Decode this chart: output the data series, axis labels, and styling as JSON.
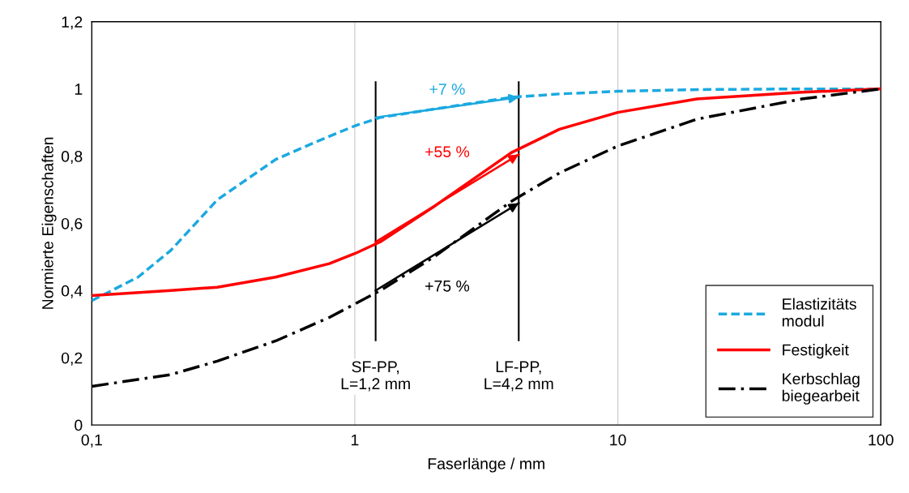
{
  "chart_data": {
    "type": "line",
    "xlabel": "Faserlänge / mm",
    "ylabel": "Normierte Eigenschaften",
    "log": "x",
    "grid": "x",
    "legend": "bottom right",
    "xlim": [
      0.1,
      100
    ],
    "xticks": [
      {
        "value": 0.1,
        "label": "0,1"
      },
      1,
      10,
      100
    ],
    "ylim": [
      0,
      1.2
    ],
    "yticks": [
      0,
      {
        "value": 0.2,
        "label": "0,2"
      },
      {
        "value": 0.4,
        "label": "0,4"
      },
      {
        "value": 0.6,
        "label": "0,6"
      },
      {
        "value": 0.8,
        "label": "0,8"
      },
      1,
      {
        "value": 1.2,
        "label": "1,2"
      }
    ],
    "series": [
      {
        "name": "Elastizitäts\nmodul",
        "color": "#1ba9e0",
        "line_style": "dashed",
        "x": [
          0.1,
          0.15,
          0.2,
          0.3,
          0.5,
          0.7,
          1,
          1.25,
          2,
          3.93,
          6,
          10,
          20,
          50,
          100
        ],
        "values": [
          0.37,
          0.44,
          0.52,
          0.67,
          0.79,
          0.84,
          0.89,
          0.915,
          0.94,
          0.975,
          0.985,
          0.993,
          0.998,
          1.0,
          1.0
        ]
      },
      {
        "name": "Festigkeit",
        "color": "#ff0000",
        "line_style": "solid",
        "x": [
          0.1,
          0.2,
          0.3,
          0.5,
          0.8,
          1,
          1.25,
          2,
          3.93,
          6,
          10,
          20,
          50,
          100
        ],
        "values": [
          0.385,
          0.4,
          0.41,
          0.44,
          0.48,
          0.51,
          0.545,
          0.65,
          0.81,
          0.88,
          0.93,
          0.97,
          0.99,
          1.0
        ]
      },
      {
        "name": "Kerbschlag\nbiegearbeit",
        "color": "#000000",
        "line_style": "dashdot",
        "x": [
          0.1,
          0.2,
          0.3,
          0.5,
          0.8,
          1,
          1.25,
          2,
          3.93,
          6,
          10,
          20,
          50,
          100
        ],
        "values": [
          0.115,
          0.15,
          0.19,
          0.25,
          0.32,
          0.36,
          0.4,
          0.5,
          0.665,
          0.75,
          0.83,
          0.91,
          0.97,
          1.0
        ]
      },
      {
        "color": "#1ba9e0",
        "line_style": "solid",
        "x": [
          1.2,
          4.2
        ],
        "values": [
          0.915,
          0.975
        ]
      },
      {
        "color": "#ff0000",
        "line_style": "solid",
        "x": [
          1.2,
          4.2
        ],
        "values": [
          0.545,
          0.805
        ]
      },
      {
        "color": "#000000",
        "line_style": "solid",
        "x": [
          1.2,
          4.2
        ],
        "values": [
          0.4,
          0.66
        ]
      }
    ],
    "ref_lines": [
      {
        "axis": "x",
        "value": 1.2,
        "label": "SF-PP,\nL=1,2 mm",
        "color": "#000000"
      },
      {
        "axis": "x",
        "value": 4.2,
        "label": "LF-PP,\nL=4,2 mm",
        "color": "#000000"
      }
    ],
    "annotations": [
      "+7 %",
      "+55 %",
      "+75 %"
    ]
  }
}
